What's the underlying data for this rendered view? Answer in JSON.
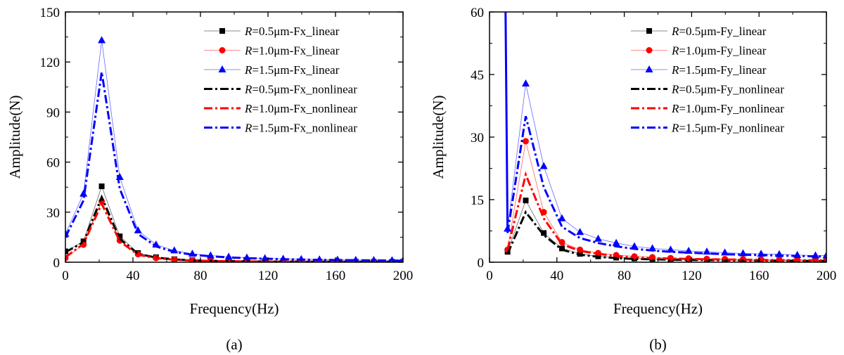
{
  "chart_data": [
    {
      "type": "line",
      "panel_label": "(a)",
      "xlabel": "Frequency(Hz)",
      "ylabel": "Amplitude(N)",
      "xlim": [
        0,
        200
      ],
      "ylim": [
        0,
        150
      ],
      "xticks": [
        0,
        40,
        80,
        120,
        160,
        200
      ],
      "yticks": [
        0,
        30,
        60,
        90,
        120,
        150
      ],
      "legend_position": "top-right",
      "grid": false,
      "series": [
        {
          "name": "=0.5μm-Fx_linear",
          "style": "linear",
          "marker": "square",
          "color": "#000000",
          "x": [
            0,
            10.7,
            21.5,
            32.2,
            43,
            53.7,
            64.5,
            75.2,
            86,
            96.7,
            107.5,
            118.2,
            129,
            139.7,
            150.5,
            161.2,
            172,
            182.7,
            193.5,
            200
          ],
          "y": [
            6.5,
            12.5,
            45.5,
            15.5,
            5.5,
            3.0,
            1.8,
            1.2,
            0.9,
            0.7,
            0.6,
            0.5,
            0.4,
            0.35,
            0.3,
            0.3,
            0.25,
            0.2,
            0.2,
            0.2
          ]
        },
        {
          "name": "=1.0μm-Fx_linear",
          "style": "linear",
          "marker": "circle",
          "color": "#ff0000",
          "x": [
            0,
            10.7,
            21.5,
            32.2,
            43,
            53.7,
            64.5,
            75.2,
            86,
            96.7,
            107.5,
            118.2,
            129,
            139.7,
            150.5,
            161.2,
            172,
            182.7,
            193.5,
            200
          ],
          "y": [
            2.5,
            10.5,
            36.5,
            13.0,
            4.8,
            2.5,
            1.6,
            1.0,
            0.8,
            0.6,
            0.5,
            0.4,
            0.35,
            0.3,
            0.3,
            0.25,
            0.2,
            0.2,
            0.2,
            0.2
          ]
        },
        {
          "name": "=1.5μm-Fx_linear",
          "style": "linear",
          "marker": "triangle",
          "color": "#0000ff",
          "x": [
            0,
            10.7,
            21.5,
            32.2,
            43,
            53.7,
            64.5,
            75.2,
            86,
            96.7,
            107.5,
            118.2,
            129,
            139.7,
            150.5,
            161.2,
            172,
            182.7,
            193.5,
            200
          ],
          "y": [
            17,
            41,
            133,
            51,
            19,
            10.5,
            7.0,
            5.0,
            4.0,
            3.2,
            2.7,
            2.3,
            2.0,
            1.8,
            1.6,
            1.4,
            1.3,
            1.2,
            1.1,
            1.0
          ]
        },
        {
          "name": "=0.5μm-Fx_nonlinear",
          "style": "nonlinear",
          "marker": "none",
          "color": "#000000",
          "x": [
            0,
            10.7,
            21.5,
            32.2,
            43,
            53.7,
            64.5,
            75.2,
            86,
            96.7,
            107.5,
            118.2,
            129,
            139.7,
            150.5,
            161.2,
            172,
            182.7,
            193.5,
            200
          ],
          "y": [
            6.0,
            12.0,
            39.0,
            14.0,
            5.0,
            2.8,
            1.7,
            1.1,
            0.8,
            0.6,
            0.5,
            0.45,
            0.4,
            0.35,
            0.3,
            0.3,
            0.25,
            0.2,
            0.2,
            0.2
          ]
        },
        {
          "name": "=1.0μm-Fx_nonlinear",
          "style": "nonlinear",
          "marker": "none",
          "color": "#ff0000",
          "x": [
            0,
            10.7,
            21.5,
            32.2,
            43,
            53.7,
            64.5,
            75.2,
            86,
            96.7,
            107.5,
            118.2,
            129,
            139.7,
            150.5,
            161.2,
            172,
            182.7,
            193.5,
            200
          ],
          "y": [
            3.0,
            11.0,
            35.0,
            12.5,
            4.5,
            2.4,
            1.5,
            1.0,
            0.75,
            0.6,
            0.5,
            0.4,
            0.35,
            0.3,
            0.3,
            0.25,
            0.2,
            0.2,
            0.2,
            0.2
          ]
        },
        {
          "name": "=1.5μm-Fx_nonlinear",
          "style": "nonlinear",
          "marker": "none",
          "color": "#0000ff",
          "x": [
            0,
            10.7,
            21.5,
            32.2,
            43,
            53.7,
            64.5,
            75.2,
            86,
            96.7,
            107.5,
            118.2,
            129,
            139.7,
            150.5,
            161.2,
            172,
            182.7,
            193.5,
            200
          ],
          "y": [
            15,
            37,
            114,
            44,
            17,
            9.5,
            6.2,
            4.5,
            3.6,
            2.9,
            2.4,
            2.1,
            1.8,
            1.6,
            1.4,
            1.3,
            1.2,
            1.1,
            1.0,
            0.9
          ]
        }
      ]
    },
    {
      "type": "line",
      "panel_label": "(b)",
      "xlabel": "Frequency(Hz)",
      "ylabel": "Amplitude(N)",
      "xlim": [
        0,
        200
      ],
      "ylim": [
        0,
        60
      ],
      "xticks": [
        0,
        40,
        80,
        120,
        160,
        200
      ],
      "yticks": [
        0,
        15,
        30,
        45,
        60
      ],
      "legend_position": "top-right",
      "grid": false,
      "series": [
        {
          "name": "=0.5μm-Fy_linear",
          "style": "linear",
          "marker": "square",
          "color": "#000000",
          "x": [
            10.7,
            21.5,
            32.2,
            43,
            53.7,
            64.5,
            75.2,
            86,
            96.7,
            107.5,
            118.2,
            129,
            139.7,
            150.5,
            161.2,
            172,
            182.7,
            193.5,
            200
          ],
          "y": [
            2.5,
            14.8,
            7.0,
            3.3,
            2.0,
            1.4,
            1.1,
            0.9,
            0.8,
            0.7,
            0.6,
            0.55,
            0.5,
            0.45,
            0.4,
            0.4,
            0.35,
            0.35,
            0.3
          ]
        },
        {
          "name": "=1.0μm-Fy_linear",
          "style": "linear",
          "marker": "circle",
          "color": "#ff0000",
          "x": [
            10.7,
            21.5,
            32.2,
            43,
            53.7,
            64.5,
            75.2,
            86,
            96.7,
            107.5,
            118.2,
            129,
            139.7,
            150.5,
            161.2,
            172,
            182.7,
            193.5,
            200
          ],
          "y": [
            3.0,
            29.0,
            12.0,
            4.8,
            3.0,
            2.2,
            1.7,
            1.4,
            1.2,
            1.0,
            0.9,
            0.8,
            0.75,
            0.7,
            0.65,
            0.6,
            0.55,
            0.5,
            0.5
          ]
        },
        {
          "name": "=1.5μm-Fy_linear",
          "style": "linear",
          "marker": "triangle",
          "color": "#0000ff",
          "x": [
            10.7,
            21.5,
            32.2,
            43,
            53.7,
            64.5,
            75.2,
            86,
            96.7,
            107.5,
            118.2,
            129,
            139.7,
            150.5,
            161.2,
            172,
            182.7,
            193.5,
            200
          ],
          "y": [
            8.0,
            42.8,
            23.0,
            10.5,
            7.2,
            5.6,
            4.6,
            3.8,
            3.3,
            3.0,
            2.7,
            2.5,
            2.3,
            2.1,
            2.0,
            1.9,
            1.7,
            1.6,
            1.6
          ]
        },
        {
          "name": "=0.5μm-Fy_nonlinear",
          "style": "nonlinear",
          "marker": "none",
          "color": "#000000",
          "x": [
            10.7,
            21.5,
            32.2,
            43,
            53.7,
            64.5,
            75.2,
            86,
            96.7,
            107.5,
            118.2,
            129,
            139.7,
            150.5,
            161.2,
            172,
            182.7,
            193.5,
            200
          ],
          "y": [
            2.0,
            12.0,
            6.5,
            3.0,
            1.8,
            1.3,
            1.0,
            0.8,
            0.7,
            0.6,
            0.55,
            0.5,
            0.45,
            0.4,
            0.4,
            0.35,
            0.3,
            0.3,
            0.3
          ]
        },
        {
          "name": "=1.0μm-Fy_nonlinear",
          "style": "nonlinear",
          "marker": "none",
          "color": "#ff0000",
          "x": [
            10.7,
            21.5,
            32.2,
            43,
            53.7,
            64.5,
            75.2,
            86,
            96.7,
            107.5,
            118.2,
            129,
            139.7,
            150.5,
            161.2,
            172,
            182.7,
            193.5,
            200
          ],
          "y": [
            3.0,
            21.0,
            10.5,
            4.3,
            2.7,
            2.0,
            1.5,
            1.2,
            1.0,
            0.9,
            0.8,
            0.7,
            0.65,
            0.6,
            0.55,
            0.5,
            0.5,
            0.45,
            0.45
          ]
        },
        {
          "name": "=1.5μm-Fy_nonlinear",
          "style": "nonlinear",
          "marker": "none",
          "color": "#0000ff",
          "x": [
            10.7,
            21.5,
            32.2,
            43,
            53.7,
            64.5,
            75.2,
            86,
            96.7,
            107.5,
            118.2,
            129,
            139.7,
            150.5,
            161.2,
            172,
            182.7,
            193.5,
            200
          ],
          "y": [
            7.0,
            35.0,
            18.0,
            8.5,
            5.8,
            4.6,
            3.8,
            3.2,
            2.8,
            2.5,
            2.3,
            2.1,
            1.9,
            1.8,
            1.7,
            1.6,
            1.5,
            1.4,
            1.4
          ]
        }
      ],
      "annotations": [
        {
          "description": "blue spike near 10 Hz exceeding the axis top",
          "x": [
            9.5,
            9.5,
            10.7
          ],
          "y": [
            60,
            60,
            8.0
          ],
          "color": "#0000ff"
        }
      ]
    }
  ],
  "legend_prefix": "R"
}
